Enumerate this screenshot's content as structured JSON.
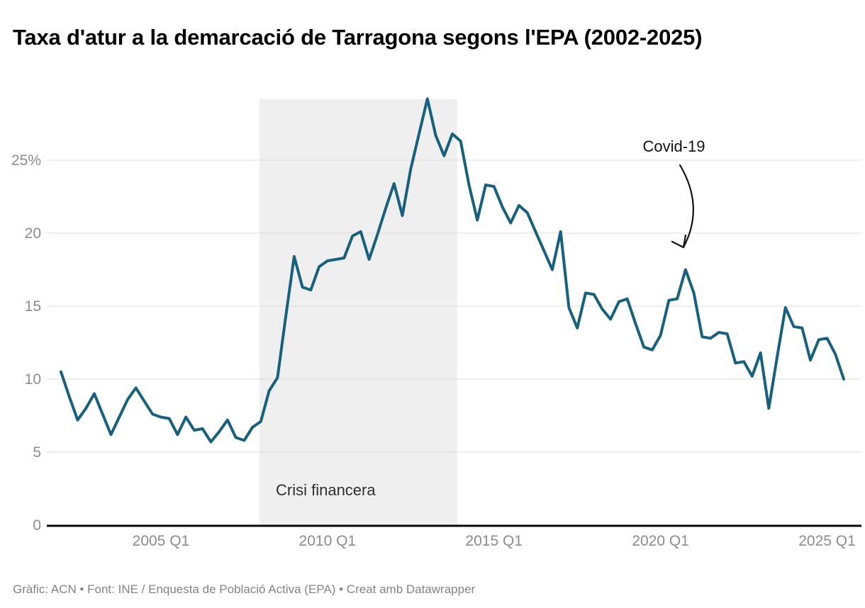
{
  "header": {
    "title": "Taxa d'atur a la demarcació de Tarragona segons l'EPA (2002-2025)"
  },
  "footer": {
    "credit": "Gràfic: ACN • Font: INE / Enquesta de Població Activa (EPA) • Creat amb Datawrapper"
  },
  "chart_data": {
    "type": "line",
    "title": "Taxa d'atur a la demarcació de Tarragona segons l'EPA (2002-2025)",
    "series_name": "Taxa d'atur",
    "unit": "%",
    "ylim": [
      0,
      29.5
    ],
    "grid": true,
    "line_color": "#17617f",
    "grid_color": "#dcdcdc",
    "axis_color": "#0a0a0a",
    "tick_label_color": "#8c8c8c",
    "band_color": "#efefef",
    "x": [
      "2002 Q1",
      "2002 Q2",
      "2002 Q3",
      "2002 Q4",
      "2003 Q1",
      "2003 Q2",
      "2003 Q3",
      "2003 Q4",
      "2004 Q1",
      "2004 Q2",
      "2004 Q3",
      "2004 Q4",
      "2005 Q1",
      "2005 Q2",
      "2005 Q3",
      "2005 Q4",
      "2006 Q1",
      "2006 Q2",
      "2006 Q3",
      "2006 Q4",
      "2007 Q1",
      "2007 Q2",
      "2007 Q3",
      "2007 Q4",
      "2008 Q1",
      "2008 Q2",
      "2008 Q3",
      "2008 Q4",
      "2009 Q1",
      "2009 Q2",
      "2009 Q3",
      "2009 Q4",
      "2010 Q1",
      "2010 Q2",
      "2010 Q3",
      "2010 Q4",
      "2011 Q1",
      "2011 Q2",
      "2011 Q3",
      "2011 Q4",
      "2012 Q1",
      "2012 Q2",
      "2012 Q3",
      "2012 Q4",
      "2013 Q1",
      "2013 Q2",
      "2013 Q3",
      "2013 Q4",
      "2014 Q1",
      "2014 Q2",
      "2014 Q3",
      "2014 Q4",
      "2015 Q1",
      "2015 Q2",
      "2015 Q3",
      "2015 Q4",
      "2016 Q1",
      "2016 Q2",
      "2016 Q3",
      "2016 Q4",
      "2017 Q1",
      "2017 Q2",
      "2017 Q3",
      "2017 Q4",
      "2018 Q1",
      "2018 Q2",
      "2018 Q3",
      "2018 Q4",
      "2019 Q1",
      "2019 Q2",
      "2019 Q3",
      "2019 Q4",
      "2020 Q1",
      "2020 Q2",
      "2020 Q3",
      "2020 Q4",
      "2021 Q1",
      "2021 Q2",
      "2021 Q3",
      "2021 Q4",
      "2022 Q1",
      "2022 Q2",
      "2022 Q3",
      "2022 Q4",
      "2023 Q1",
      "2023 Q2",
      "2023 Q3",
      "2023 Q4",
      "2024 Q1",
      "2024 Q2",
      "2024 Q3",
      "2024 Q4",
      "2025 Q1",
      "2025 Q2",
      "2025 Q3"
    ],
    "values": [
      10.5,
      8.8,
      7.2,
      8.0,
      9.0,
      7.6,
      6.2,
      7.4,
      8.6,
      9.4,
      8.5,
      7.6,
      7.4,
      7.3,
      6.2,
      7.4,
      6.5,
      6.6,
      5.7,
      6.4,
      7.2,
      6.0,
      5.8,
      6.7,
      7.1,
      9.2,
      10.1,
      14.3,
      18.4,
      16.3,
      16.1,
      17.7,
      18.1,
      18.2,
      18.3,
      19.8,
      20.1,
      18.2,
      19.9,
      21.7,
      23.4,
      21.2,
      24.4,
      26.8,
      29.2,
      26.7,
      25.3,
      26.8,
      26.3,
      23.3,
      20.9,
      23.3,
      23.2,
      21.8,
      20.7,
      21.9,
      21.4,
      20.1,
      18.8,
      17.5,
      20.1,
      14.9,
      13.5,
      15.9,
      15.8,
      14.8,
      14.1,
      15.3,
      15.5,
      13.8,
      12.2,
      12.0,
      13.0,
      15.4,
      15.5,
      17.5,
      15.9,
      12.9,
      12.8,
      13.2,
      13.1,
      11.1,
      11.2,
      10.2,
      11.8,
      8.0,
      11.5,
      14.9,
      13.6,
      13.5,
      11.3,
      12.7,
      12.8,
      11.7,
      10.0
    ],
    "yticks": [
      {
        "value": 0,
        "label": "0"
      },
      {
        "value": 5,
        "label": "5"
      },
      {
        "value": 10,
        "label": "10"
      },
      {
        "value": 15,
        "label": "15"
      },
      {
        "value": 20,
        "label": "20"
      },
      {
        "value": 25,
        "label": "25%"
      }
    ],
    "xticks": [
      {
        "label": "2005 Q1",
        "index": 12
      },
      {
        "label": "2010 Q1",
        "index": 32
      },
      {
        "label": "2015 Q1",
        "index": 52
      },
      {
        "label": "2020 Q1",
        "index": 72
      },
      {
        "label": "2025 Q1",
        "index": 92
      }
    ],
    "annotations": {
      "band": {
        "label": "Crisi financera",
        "from": "2008 Q1",
        "to": "2014 Q1",
        "from_index": 24,
        "to_index": 48
      },
      "covid": {
        "label": "Covid-19",
        "points_to": "2020 Q4",
        "point_index": 75,
        "peak_value": 17.5
      }
    }
  }
}
